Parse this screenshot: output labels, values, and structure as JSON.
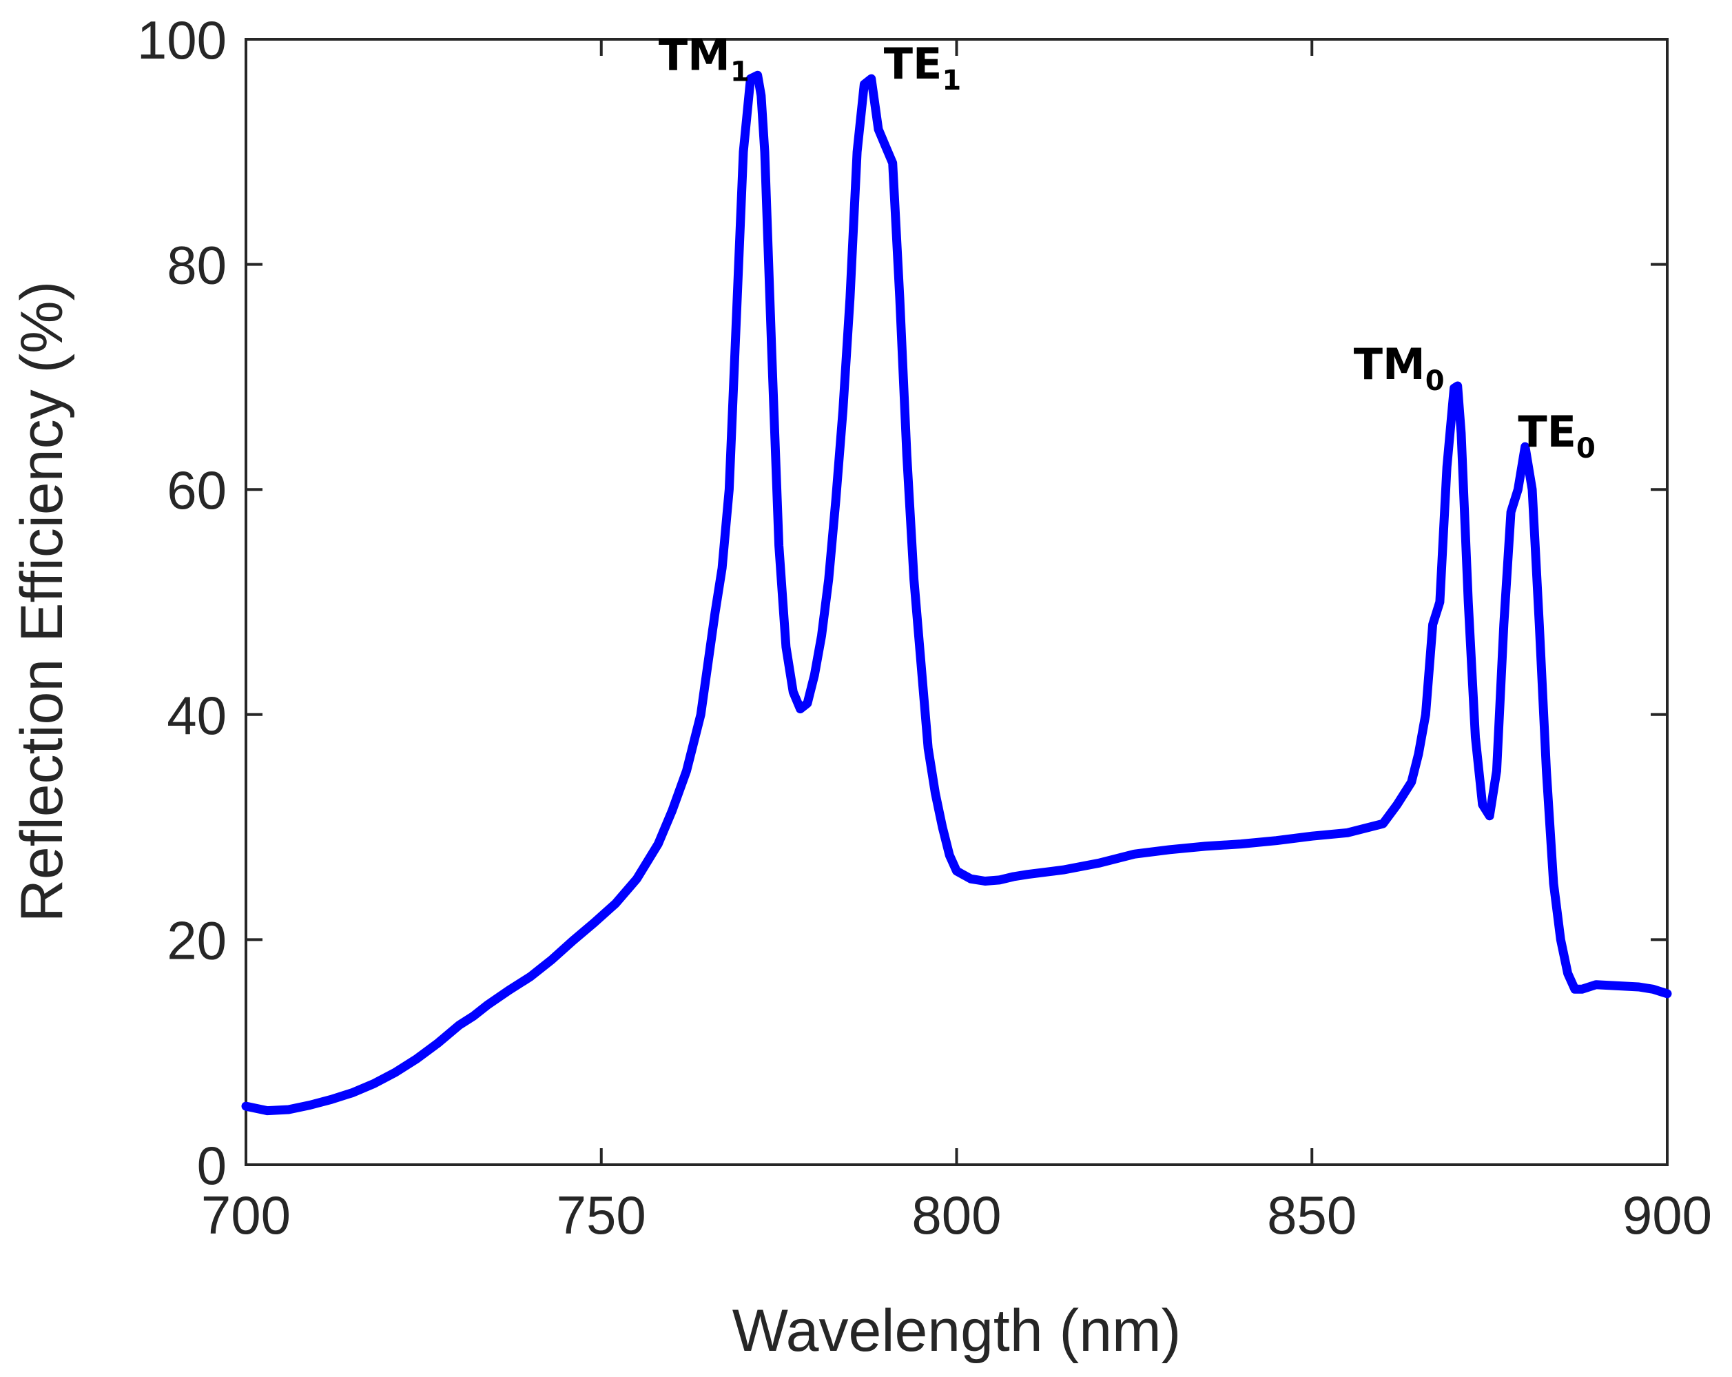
{
  "chart_data": {
    "type": "line",
    "title": "",
    "xlabel": "Wavelength (nm)",
    "ylabel": "Reflection Efficiency (%)",
    "xlim": [
      700,
      900
    ],
    "ylim": [
      0,
      100
    ],
    "xticks": [
      700,
      750,
      800,
      850,
      900
    ],
    "yticks": [
      0,
      20,
      40,
      60,
      80,
      100
    ],
    "grid": false,
    "line_color": "#0000ff",
    "series": [
      {
        "name": "Reflection Efficiency",
        "x": [
          700,
          703,
          706,
          709,
          712,
          715,
          718,
          721,
          724,
          727,
          730,
          732,
          734,
          737,
          740,
          743,
          746,
          749,
          752,
          755,
          758,
          760,
          762,
          764,
          765,
          766,
          767,
          768,
          769,
          770,
          771,
          772,
          772.5,
          773,
          774,
          775,
          776,
          777,
          778,
          779,
          780,
          781,
          782,
          783,
          784,
          785,
          786,
          787,
          788,
          789,
          790,
          791,
          792,
          793,
          794,
          795,
          796,
          797,
          798,
          799,
          800,
          802,
          804,
          806,
          808,
          810,
          815,
          820,
          825,
          830,
          835,
          840,
          845,
          850,
          855,
          860,
          862,
          864,
          865,
          866,
          867,
          868,
          869,
          870,
          870.5,
          871,
          872,
          873,
          874,
          875,
          876,
          877,
          878,
          879,
          880,
          881,
          882,
          883,
          884,
          885,
          886,
          887,
          888,
          890,
          893,
          896,
          898,
          900
        ],
        "y": [
          5.2,
          4.8,
          4.9,
          5.3,
          5.8,
          6.4,
          7.2,
          8.2,
          9.4,
          10.8,
          12.4,
          13.2,
          14.2,
          15.5,
          16.7,
          18.2,
          19.9,
          21.5,
          23.2,
          25.4,
          28.5,
          31.5,
          35,
          40,
          44.5,
          49,
          53,
          60,
          75,
          90,
          96.5,
          96.8,
          95,
          90,
          72,
          55,
          46,
          42,
          40.5,
          41,
          43.5,
          47,
          52,
          59,
          67,
          77,
          90,
          96,
          96.5,
          92,
          90.5,
          89,
          77,
          63,
          52,
          44.5,
          37,
          33,
          30,
          27.5,
          26.1,
          25.4,
          25.2,
          25.3,
          25.6,
          25.8,
          26.2,
          26.8,
          27.6,
          28,
          28.3,
          28.5,
          28.8,
          29.2,
          29.5,
          30.3,
          32,
          34,
          36.5,
          40,
          48,
          50,
          62,
          69,
          69.2,
          65,
          50,
          38,
          32,
          31,
          35,
          48,
          58,
          60,
          63.8,
          60,
          48,
          35,
          25,
          20,
          17,
          15.6,
          15.6,
          16,
          15.9,
          15.8,
          15.6,
          15.2
        ],
        "color": "#0000ff"
      }
    ],
    "annotations": [
      {
        "main": "TM",
        "sub": "1",
        "x": 772,
        "y": 96.8
      },
      {
        "main": "TE",
        "sub": "1",
        "x": 788,
        "y": 96.5
      },
      {
        "main": "TM",
        "sub": "0",
        "x": 870,
        "y": 69.2
      },
      {
        "main": "TE",
        "sub": "0",
        "x": 879,
        "y": 63.8
      }
    ]
  }
}
